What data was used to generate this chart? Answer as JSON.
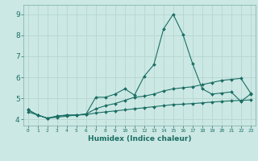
{
  "xlabel": "Humidex (Indice chaleur)",
  "ylabel": "",
  "xlim": [
    -0.5,
    23.5
  ],
  "ylim": [
    3.7,
    9.45
  ],
  "bg_color": "#cce8e4",
  "grid_color": "#b8d8d4",
  "line_color": "#1a6e64",
  "x_ticks": [
    0,
    1,
    2,
    3,
    4,
    5,
    6,
    7,
    8,
    9,
    10,
    11,
    12,
    13,
    14,
    15,
    16,
    17,
    18,
    19,
    20,
    21,
    22,
    23
  ],
  "y_ticks": [
    4,
    5,
    6,
    7,
    8,
    9
  ],
  "series": [
    {
      "x": [
        0,
        1,
        2,
        3,
        4,
        5,
        6,
        7,
        8,
        9,
        10,
        11,
        12,
        13,
        14,
        15,
        16,
        17,
        18,
        19,
        20,
        21,
        22,
        23
      ],
      "y": [
        4.45,
        4.2,
        4.05,
        4.15,
        4.2,
        4.2,
        4.25,
        5.05,
        5.05,
        5.2,
        5.45,
        5.15,
        6.05,
        6.6,
        8.3,
        9.0,
        8.05,
        6.65,
        5.45,
        5.2,
        5.25,
        5.3,
        4.85,
        5.2
      ]
    },
    {
      "x": [
        0,
        1,
        2,
        3,
        4,
        5,
        6,
        7,
        8,
        9,
        10,
        11,
        12,
        13,
        14,
        15,
        16,
        17,
        18,
        19,
        20,
        21,
        22,
        23
      ],
      "y": [
        4.45,
        4.2,
        4.05,
        4.15,
        4.2,
        4.2,
        4.25,
        4.5,
        4.65,
        4.75,
        4.9,
        5.05,
        5.1,
        5.2,
        5.35,
        5.45,
        5.5,
        5.55,
        5.65,
        5.75,
        5.85,
        5.9,
        5.95,
        5.25
      ]
    },
    {
      "x": [
        0,
        1,
        2,
        3,
        4,
        5,
        6,
        7,
        8,
        9,
        10,
        11,
        12,
        13,
        14,
        15,
        16,
        17,
        18,
        19,
        20,
        21,
        22,
        23
      ],
      "y": [
        4.35,
        4.2,
        4.05,
        4.1,
        4.15,
        4.2,
        4.22,
        4.3,
        4.35,
        4.4,
        4.45,
        4.5,
        4.55,
        4.6,
        4.65,
        4.7,
        4.72,
        4.75,
        4.78,
        4.82,
        4.85,
        4.88,
        4.9,
        4.92
      ]
    }
  ]
}
